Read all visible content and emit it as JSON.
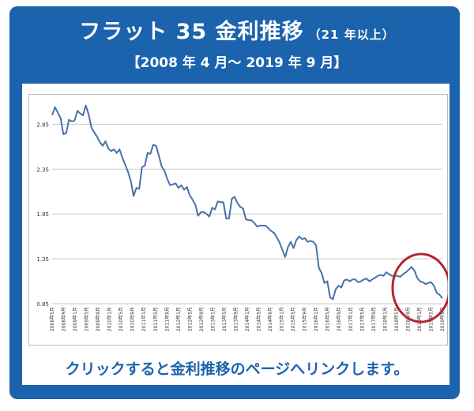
{
  "header": {
    "title_main": "フラット 35 金利推移",
    "title_sub": "（21 年以上）",
    "period": "【2008 年 4 月～ 2019 年 9 月】"
  },
  "cta": {
    "label": "クリックすると金利推移のページへリンクします。"
  },
  "colors": {
    "brand_blue": "#1c63ad",
    "line": "#4672a8",
    "highlight_circle": "#b3262f",
    "grid": "#c8c8c8"
  },
  "chart_data": {
    "type": "line",
    "title": "",
    "xlabel": "",
    "ylabel": "",
    "ylim": [
      0.85,
      3.1
    ],
    "yticks": [
      0.85,
      1.35,
      1.85,
      2.35,
      2.85
    ],
    "ytick_labels": [
      "0.85",
      "1.35",
      "1.85",
      "2.35",
      "2.85"
    ],
    "xtick_labels": [
      "2008年5月",
      "2008年9月",
      "2009年1月",
      "2009年5月",
      "2009年9月",
      "2010年1月",
      "2010年5月",
      "2010年9月",
      "2011年1月",
      "2011年5月",
      "2011年9月",
      "2012年1月",
      "2012年5月",
      "2012年9月",
      "2013年1月",
      "2013年5月",
      "2013年9月",
      "2014年1月",
      "2014年5月",
      "2014年9月",
      "2015年1月",
      "2015年5月",
      "2015年9月",
      "2016年1月",
      "2016年5月",
      "2016年9月",
      "2017年1月",
      "2017年5月",
      "2017年9月",
      "2018年1月",
      "2018年5月",
      "2018年9月",
      "2019年1月",
      "2019年5月",
      "2019年9月"
    ],
    "grid": true,
    "annotation": "circle around 2018年5月–2019年9月",
    "values": [
      2.95,
      3.04,
      2.98,
      2.92,
      2.74,
      2.75,
      2.9,
      2.88,
      2.89,
      3.0,
      2.97,
      2.95,
      3.06,
      2.96,
      2.81,
      2.76,
      2.71,
      2.65,
      2.61,
      2.66,
      2.58,
      2.55,
      2.57,
      2.53,
      2.57,
      2.48,
      2.4,
      2.32,
      2.22,
      2.05,
      2.14,
      2.13,
      2.37,
      2.39,
      2.53,
      2.52,
      2.62,
      2.61,
      2.5,
      2.38,
      2.33,
      2.24,
      2.17,
      2.18,
      2.19,
      2.14,
      2.17,
      2.12,
      2.15,
      2.06,
      2.01,
      1.95,
      1.83,
      1.87,
      1.87,
      1.85,
      1.82,
      1.92,
      1.9,
      1.99,
      1.98,
      1.98,
      1.8,
      1.8,
      2.02,
      2.04,
      1.97,
      1.93,
      1.91,
      1.79,
      1.78,
      1.78,
      1.75,
      1.71,
      1.72,
      1.72,
      1.72,
      1.69,
      1.66,
      1.64,
      1.59,
      1.53,
      1.45,
      1.37,
      1.48,
      1.54,
      1.47,
      1.56,
      1.6,
      1.57,
      1.58,
      1.54,
      1.55,
      1.54,
      1.5,
      1.25,
      1.19,
      1.08,
      1.1,
      0.92,
      0.9,
      1.01,
      1.05,
      1.03,
      1.11,
      1.12,
      1.1,
      1.12,
      1.12,
      1.09,
      1.1,
      1.12,
      1.13,
      1.1,
      1.12,
      1.14,
      1.16,
      1.17,
      1.16,
      1.2,
      1.18,
      1.16,
      1.16,
      1.16,
      1.15,
      1.18,
      1.2,
      1.23,
      1.26,
      1.22,
      1.14,
      1.1,
      1.09,
      1.07,
      1.08,
      1.09,
      1.05,
      0.97,
      0.95,
      0.91
    ]
  }
}
